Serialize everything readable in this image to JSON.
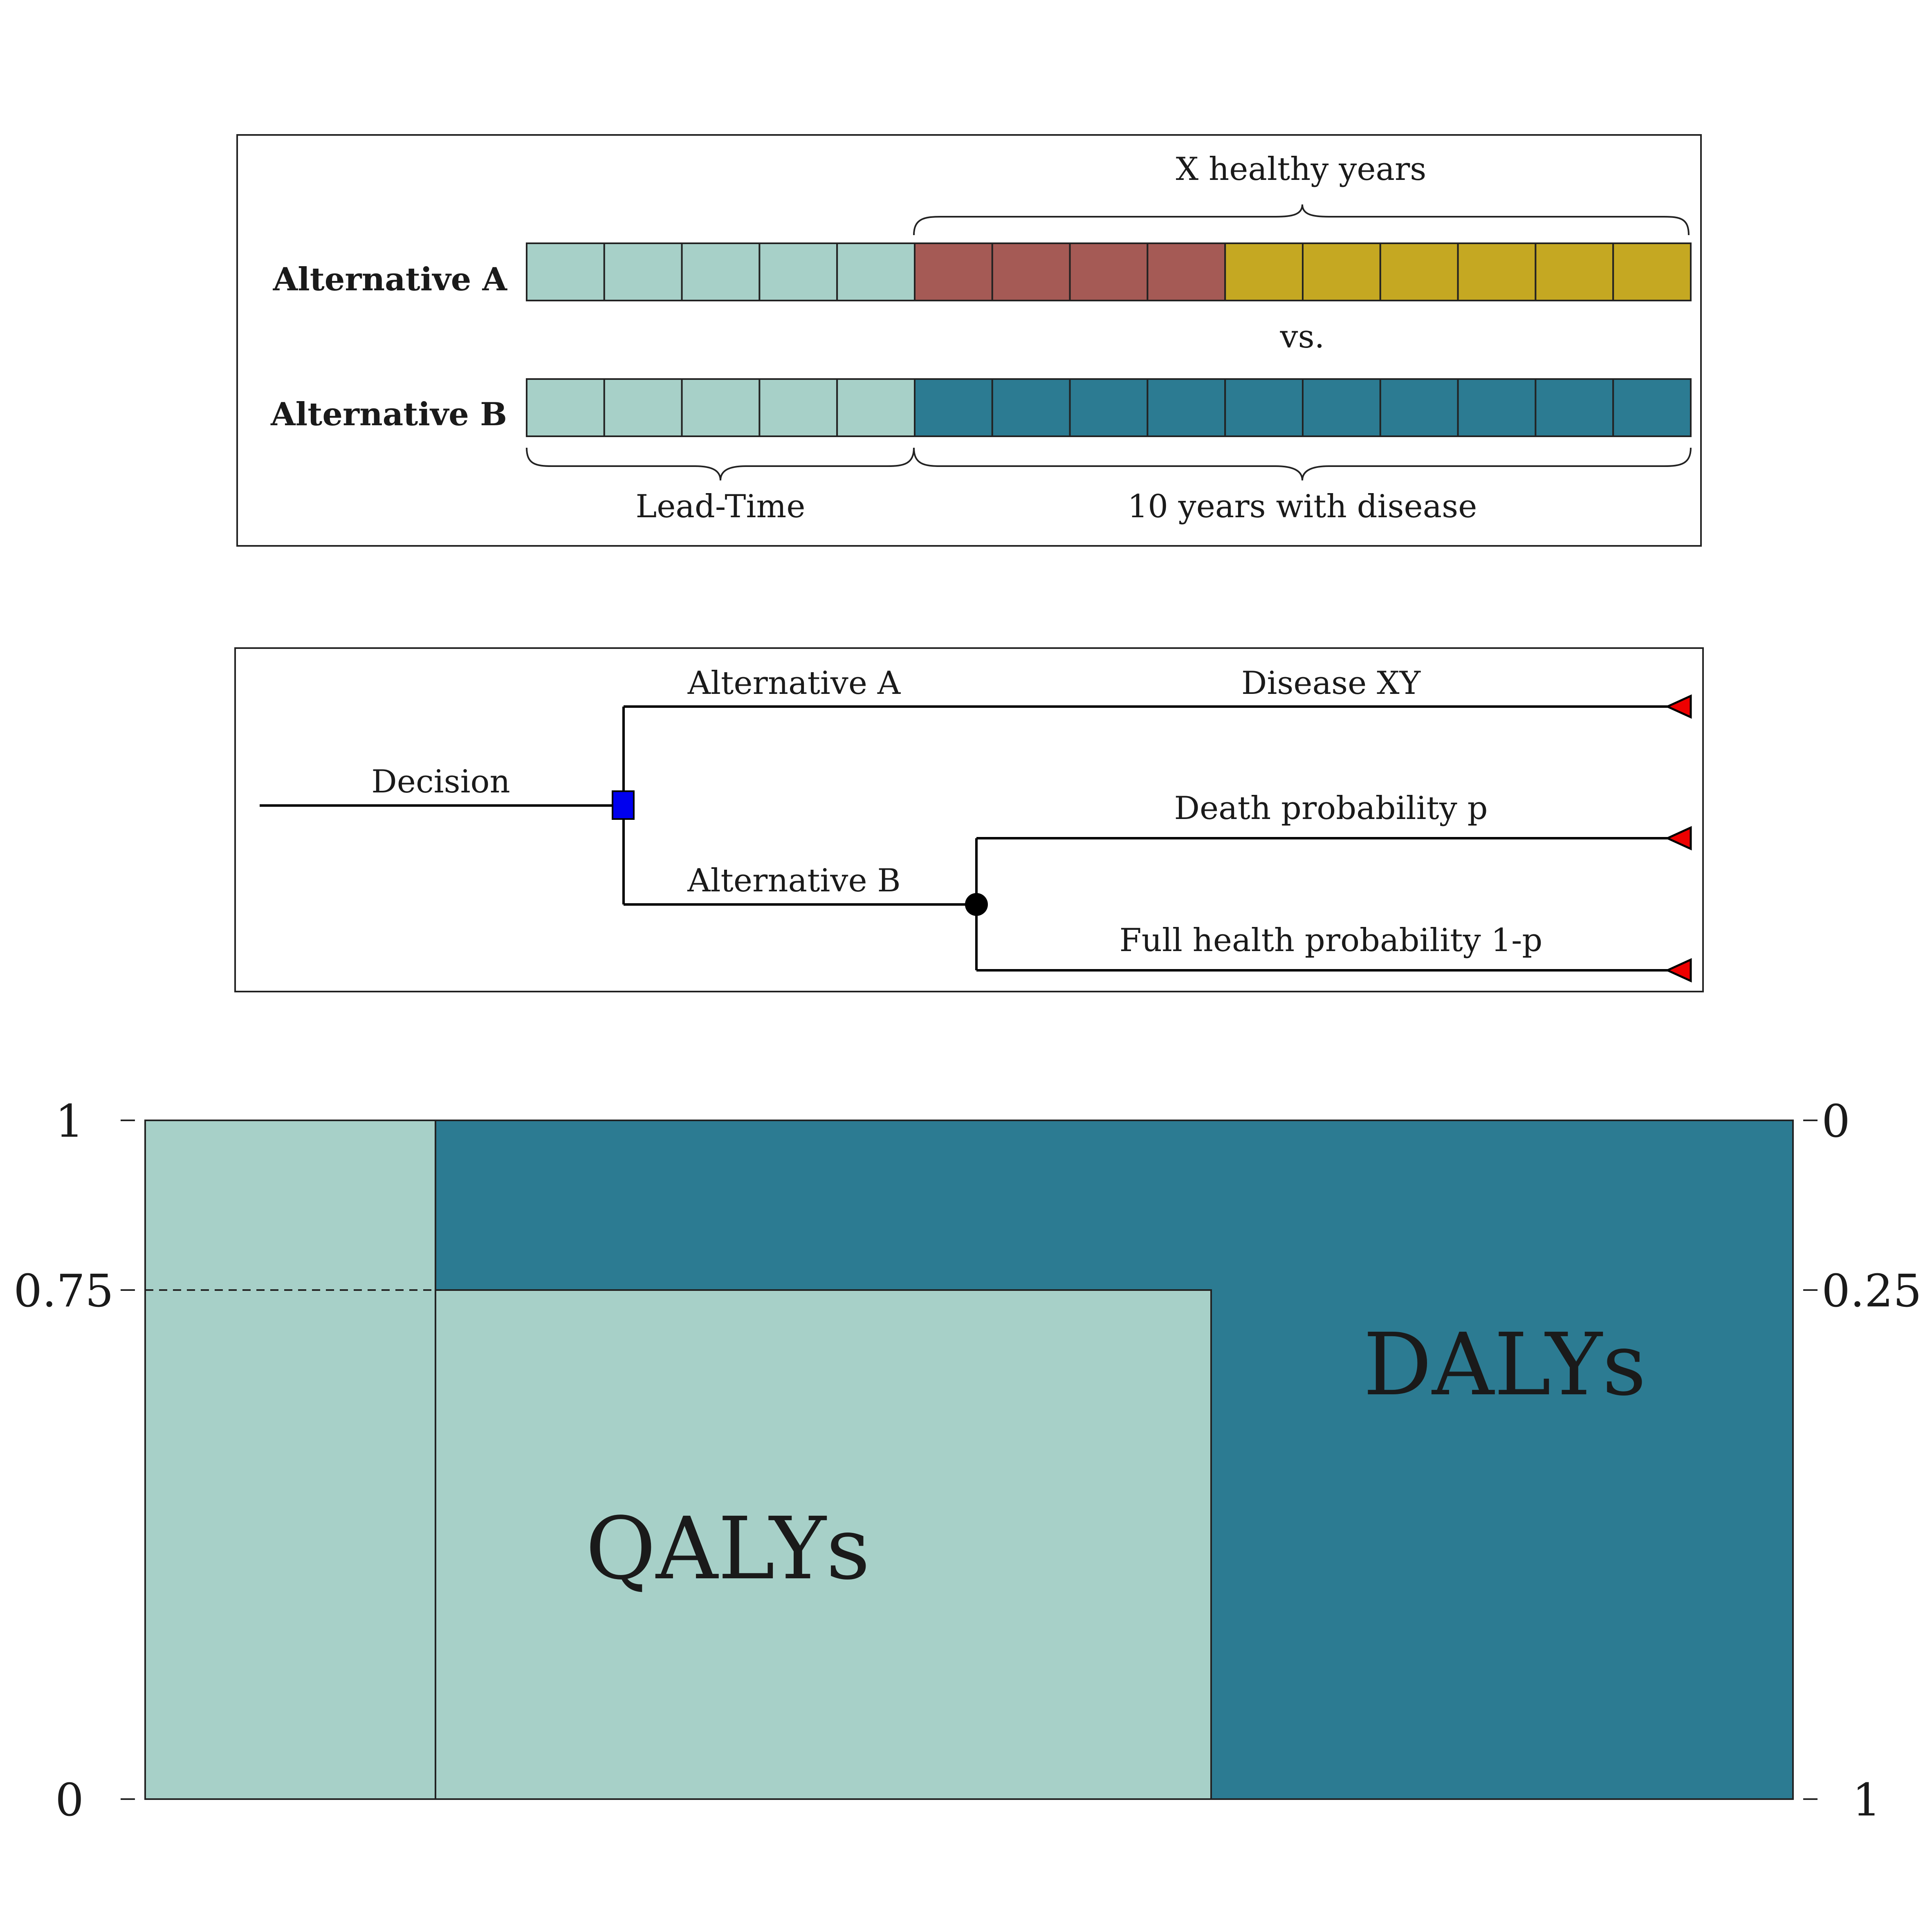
{
  "colors": {
    "lead_time": "#a7d0c8",
    "disease_a": "#a55a55",
    "healthy": "#c5a822",
    "disease_b": "#2c7b92",
    "decision_node": "#0000ee",
    "terminal_node": "#ee0000",
    "chance_node": "#000000"
  },
  "timeline": {
    "brace_top": "X healthy years",
    "row_a_label": "Alternative A",
    "vs_label": "vs.",
    "row_b_label": "Alternative B",
    "brace_bottom_left": "Lead-Time",
    "brace_bottom_right": "10 years with disease",
    "row_a_segments": [
      {
        "kind": "lead_time",
        "count": 5
      },
      {
        "kind": "disease_a",
        "count": 4
      },
      {
        "kind": "healthy",
        "count": 6
      }
    ],
    "row_b_segments": [
      {
        "kind": "lead_time",
        "count": 5
      },
      {
        "kind": "disease_b",
        "count": 10
      }
    ]
  },
  "tree": {
    "root_label": "Decision",
    "branch_a_label": "Alternative A",
    "branch_a_outcome": "Disease XY",
    "branch_b_label": "Alternative B",
    "outcome_1": "Death probability p",
    "outcome_2": "Full health probability 1-p",
    "decision_node_icon": "decision-square-icon",
    "chance_node_icon": "chance-circle-icon",
    "terminal_node_icon": "terminal-triangle-icon"
  },
  "qaly_daly": {
    "left_ticks": [
      "1",
      "0.75",
      "0"
    ],
    "right_ticks": [
      "0",
      "0.25",
      "1"
    ],
    "qaly_label": "QALYs",
    "daly_label": "DALYs",
    "quality_weight": 0.75
  }
}
